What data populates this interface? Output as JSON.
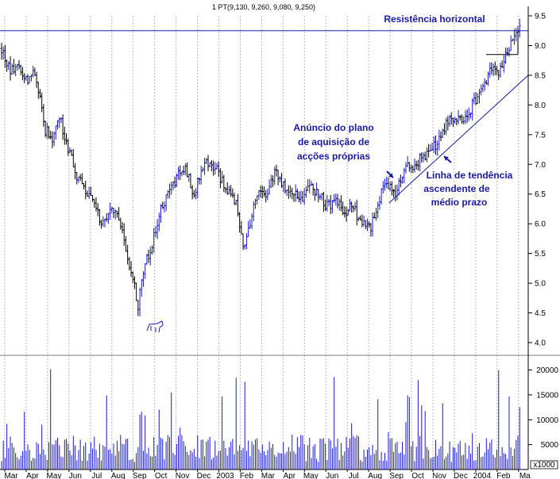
{
  "chart_data": [
    {
      "type": "candlestick",
      "title": "1 PT(9,130, 9,260, 9,080, 9,250)",
      "ylim": [
        4.0,
        9.5
      ],
      "y_ticks": [
        "4.0",
        "4.5",
        "5.0",
        "5.5",
        "6.0",
        "6.5",
        "7.0",
        "7.5",
        "8.0",
        "8.5",
        "9.0",
        "9.5"
      ],
      "x_ticks": [
        "Mar",
        "Apr",
        "May",
        "Jun",
        "Jul",
        "Aug",
        "Sep",
        "Oct",
        "Nov",
        "Dec",
        "2003",
        "Feb",
        "Mar",
        "Apr",
        "May",
        "Jun",
        "Jul",
        "Aug",
        "Sep",
        "Oct",
        "Nov",
        "Dec",
        "2004",
        "Feb",
        "Ma"
      ],
      "grid": true,
      "series_points": [
        {
          "x": 0.0,
          "y": 8.95
        },
        {
          "x": 0.4,
          "y": 8.55
        },
        {
          "x": 0.8,
          "y": 8.7
        },
        {
          "x": 1.2,
          "y": 8.4
        },
        {
          "x": 1.6,
          "y": 8.55
        },
        {
          "x": 2.0,
          "y": 7.6
        },
        {
          "x": 2.4,
          "y": 7.45
        },
        {
          "x": 2.7,
          "y": 7.8
        },
        {
          "x": 3.1,
          "y": 7.3
        },
        {
          "x": 3.5,
          "y": 6.8
        },
        {
          "x": 3.9,
          "y": 6.6
        },
        {
          "x": 4.3,
          "y": 6.3
        },
        {
          "x": 4.7,
          "y": 6.0
        },
        {
          "x": 5.1,
          "y": 6.3
        },
        {
          "x": 5.5,
          "y": 6.1
        },
        {
          "x": 5.9,
          "y": 5.4
        },
        {
          "x": 6.2,
          "y": 5.0
        },
        {
          "x": 6.35,
          "y": 4.5
        },
        {
          "x": 6.6,
          "y": 5.2
        },
        {
          "x": 7.0,
          "y": 5.6
        },
        {
          "x": 7.4,
          "y": 6.2
        },
        {
          "x": 7.8,
          "y": 6.5
        },
        {
          "x": 8.2,
          "y": 6.8
        },
        {
          "x": 8.6,
          "y": 6.9
        },
        {
          "x": 9.0,
          "y": 6.5
        },
        {
          "x": 9.4,
          "y": 7.0
        },
        {
          "x": 9.8,
          "y": 7.05
        },
        {
          "x": 10.2,
          "y": 6.8
        },
        {
          "x": 10.6,
          "y": 6.5
        },
        {
          "x": 11.0,
          "y": 6.3
        },
        {
          "x": 11.3,
          "y": 5.6
        },
        {
          "x": 11.6,
          "y": 6.0
        },
        {
          "x": 12.0,
          "y": 6.6
        },
        {
          "x": 12.4,
          "y": 6.5
        },
        {
          "x": 12.8,
          "y": 6.9
        },
        {
          "x": 13.2,
          "y": 6.6
        },
        {
          "x": 13.6,
          "y": 6.5
        },
        {
          "x": 14.0,
          "y": 6.4
        },
        {
          "x": 14.4,
          "y": 6.6
        },
        {
          "x": 14.8,
          "y": 6.5
        },
        {
          "x": 15.2,
          "y": 6.3
        },
        {
          "x": 15.6,
          "y": 6.4
        },
        {
          "x": 16.0,
          "y": 6.2
        },
        {
          "x": 16.4,
          "y": 6.3
        },
        {
          "x": 16.8,
          "y": 6.0
        },
        {
          "x": 17.2,
          "y": 5.9
        },
        {
          "x": 17.6,
          "y": 6.4
        },
        {
          "x": 18.0,
          "y": 6.7
        },
        {
          "x": 18.4,
          "y": 6.5
        },
        {
          "x": 18.8,
          "y": 6.9
        },
        {
          "x": 19.2,
          "y": 7.0
        },
        {
          "x": 19.6,
          "y": 7.1
        },
        {
          "x": 20.0,
          "y": 7.2
        },
        {
          "x": 20.4,
          "y": 7.4
        },
        {
          "x": 20.8,
          "y": 7.7
        },
        {
          "x": 21.2,
          "y": 7.8
        },
        {
          "x": 21.6,
          "y": 7.7
        },
        {
          "x": 22.0,
          "y": 8.0
        },
        {
          "x": 22.4,
          "y": 8.2
        },
        {
          "x": 22.8,
          "y": 8.6
        },
        {
          "x": 23.2,
          "y": 8.5
        },
        {
          "x": 23.6,
          "y": 8.9
        },
        {
          "x": 23.9,
          "y": 9.1
        },
        {
          "x": 24.2,
          "y": 9.25
        }
      ],
      "volume": {
        "ylim": [
          0,
          22000
        ],
        "y_ticks": [
          "5000",
          "10000",
          "15000",
          "20000"
        ],
        "unit": "x1000"
      },
      "annotations": [
        {
          "text": "Resistência horizontal",
          "x": 21.5,
          "y": 9.38
        },
        {
          "text": "Anúncio do plano",
          "x": 14.0,
          "y": 7.35
        },
        {
          "text": "de aquisição de",
          "x": 14.0,
          "y": 7.13
        },
        {
          "text": "acções próprias",
          "x": 14.0,
          "y": 6.91
        },
        {
          "text": "Linha de tendência",
          "x": 20.5,
          "y": 6.8
        },
        {
          "text": "ascendente de",
          "x": 20.5,
          "y": 6.58
        },
        {
          "text": "médio prazo",
          "x": 20.5,
          "y": 6.36
        }
      ],
      "resistance_level": 9.25,
      "trendline": [
        {
          "x": 18.1,
          "y": 6.35
        },
        {
          "x": 24.6,
          "y": 8.5
        }
      ]
    }
  ]
}
